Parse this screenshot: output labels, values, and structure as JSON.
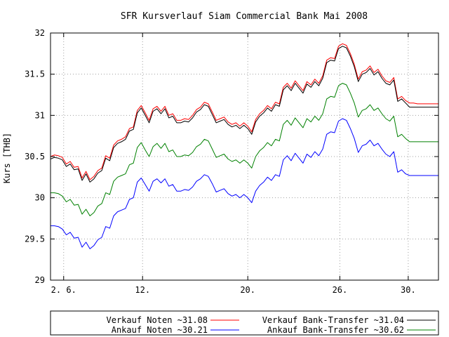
{
  "chart_data": {
    "type": "line",
    "title": "SFR Kursverlauf Siam Commercial Bank Mai 2008",
    "ylabel": "Kurs [THB]",
    "xlabel": "",
    "ylim": [
      29,
      32
    ],
    "xlim": [
      0,
      29.5
    ],
    "grid": true,
    "legend_position": "bottom",
    "yticks": [
      {
        "v": 29,
        "label": "29"
      },
      {
        "v": 29.5,
        "label": "29.5"
      },
      {
        "v": 30,
        "label": "30"
      },
      {
        "v": 30.5,
        "label": "30.5"
      },
      {
        "v": 31,
        "label": "31"
      },
      {
        "v": 31.5,
        "label": "31.5"
      },
      {
        "v": 32,
        "label": "32"
      }
    ],
    "xticks": [
      {
        "v": 1,
        "label": "2. 6."
      },
      {
        "v": 7,
        "label": "12."
      },
      {
        "v": 15,
        "label": "20."
      },
      {
        "v": 22,
        "label": "26."
      },
      {
        "v": 27.2,
        "label": "30."
      }
    ],
    "x": [
      0,
      0.3,
      0.6,
      0.9,
      1.2,
      1.5,
      1.8,
      2.1,
      2.4,
      2.7,
      3.0,
      3.3,
      3.6,
      3.9,
      4.2,
      4.5,
      4.8,
      5.1,
      5.4,
      5.7,
      6.0,
      6.3,
      6.6,
      6.9,
      7.2,
      7.5,
      7.8,
      8.1,
      8.4,
      8.7,
      9.0,
      9.3,
      9.6,
      9.9,
      10.2,
      10.5,
      10.8,
      11.1,
      11.4,
      11.7,
      12.0,
      12.3,
      12.6,
      12.9,
      13.2,
      13.5,
      13.8,
      14.1,
      14.4,
      14.7,
      15.0,
      15.3,
      15.6,
      15.9,
      16.2,
      16.5,
      16.8,
      17.1,
      17.4,
      17.7,
      18.0,
      18.3,
      18.6,
      18.9,
      19.2,
      19.5,
      19.8,
      20.1,
      20.4,
      20.7,
      21.0,
      21.3,
      21.6,
      21.9,
      22.2,
      22.5,
      22.8,
      23.1,
      23.4,
      23.7,
      24.0,
      24.3,
      24.6,
      24.9,
      25.2,
      25.5,
      25.8,
      26.1,
      26.4,
      26.7,
      27.0,
      27.3,
      27.6,
      27.9,
      28.2,
      28.5,
      28.8,
      29.1,
      29.5
    ],
    "series": [
      {
        "name": "Verkauf Noten ~31.08",
        "color": "#ff0000",
        "values": [
          30.5,
          30.52,
          30.51,
          30.49,
          30.41,
          30.44,
          30.37,
          30.38,
          30.24,
          30.32,
          30.22,
          30.26,
          30.33,
          30.36,
          30.51,
          30.48,
          30.64,
          30.69,
          30.71,
          30.74,
          30.84,
          30.86,
          31.06,
          31.12,
          31.03,
          30.94,
          31.08,
          31.11,
          31.05,
          31.11,
          31.0,
          31.02,
          30.94,
          30.94,
          30.96,
          30.95,
          31.0,
          31.07,
          31.1,
          31.16,
          31.14,
          31.04,
          30.94,
          30.96,
          30.98,
          30.92,
          30.89,
          30.91,
          30.87,
          30.91,
          30.87,
          30.8,
          30.95,
          31.02,
          31.06,
          31.12,
          31.08,
          31.16,
          31.14,
          31.34,
          31.39,
          31.33,
          31.42,
          31.36,
          31.3,
          31.41,
          31.37,
          31.44,
          31.39,
          31.48,
          31.67,
          31.7,
          31.69,
          31.84,
          31.87,
          31.85,
          31.75,
          31.62,
          31.44,
          31.53,
          31.55,
          31.6,
          31.52,
          31.56,
          31.48,
          31.42,
          31.4,
          31.46,
          31.2,
          31.23,
          31.18,
          31.15,
          31.15,
          31.14,
          31.14,
          31.14,
          31.14,
          31.14,
          31.14
        ]
      },
      {
        "name": "Verkauf Bank-Transfer ~31.04",
        "color": "#000000",
        "values": [
          30.47,
          30.49,
          30.48,
          30.46,
          30.38,
          30.41,
          30.34,
          30.35,
          30.21,
          30.29,
          30.19,
          30.23,
          30.3,
          30.33,
          30.48,
          30.45,
          30.61,
          30.66,
          30.68,
          30.71,
          30.81,
          30.83,
          31.03,
          31.09,
          31.0,
          30.91,
          31.05,
          31.08,
          31.02,
          31.08,
          30.97,
          30.99,
          30.91,
          30.91,
          30.93,
          30.92,
          30.97,
          31.04,
          31.07,
          31.13,
          31.11,
          31.01,
          30.91,
          30.93,
          30.95,
          30.89,
          30.86,
          30.88,
          30.84,
          30.88,
          30.84,
          30.77,
          30.92,
          30.99,
          31.03,
          31.09,
          31.05,
          31.13,
          31.11,
          31.31,
          31.36,
          31.3,
          31.39,
          31.33,
          31.27,
          31.38,
          31.34,
          31.41,
          31.36,
          31.45,
          31.64,
          31.67,
          31.66,
          31.81,
          31.84,
          31.82,
          31.72,
          31.59,
          31.41,
          31.5,
          31.52,
          31.57,
          31.49,
          31.53,
          31.45,
          31.39,
          31.37,
          31.43,
          31.17,
          31.2,
          31.15,
          31.1,
          31.1,
          31.1,
          31.1,
          31.1,
          31.1,
          31.1,
          31.1
        ]
      },
      {
        "name": "Ankauf Bank-Transfer ~30.62",
        "color": "#008000",
        "values": [
          30.06,
          30.06,
          30.05,
          30.02,
          29.95,
          29.98,
          29.91,
          29.92,
          29.8,
          29.86,
          29.78,
          29.82,
          29.9,
          29.93,
          30.06,
          30.04,
          30.2,
          30.25,
          30.27,
          30.29,
          30.4,
          30.42,
          30.61,
          30.67,
          30.58,
          30.5,
          30.62,
          30.66,
          30.6,
          30.66,
          30.56,
          30.58,
          30.5,
          30.5,
          30.52,
          30.51,
          30.55,
          30.62,
          30.65,
          30.71,
          30.69,
          30.59,
          30.49,
          30.51,
          30.53,
          30.47,
          30.44,
          30.46,
          30.42,
          30.46,
          30.42,
          30.36,
          30.5,
          30.57,
          30.61,
          30.67,
          30.63,
          30.71,
          30.69,
          30.89,
          30.94,
          30.88,
          30.97,
          30.91,
          30.85,
          30.96,
          30.92,
          30.99,
          30.94,
          31.02,
          31.2,
          31.23,
          31.22,
          31.36,
          31.39,
          31.37,
          31.27,
          31.15,
          30.98,
          31.06,
          31.08,
          31.13,
          31.06,
          31.09,
          31.02,
          30.96,
          30.93,
          30.99,
          30.74,
          30.77,
          30.72,
          30.68,
          30.68,
          30.68,
          30.68,
          30.68,
          30.68,
          30.68,
          30.68
        ]
      },
      {
        "name": "Ankauf Noten ~30.21",
        "color": "#0000ff",
        "values": [
          29.66,
          29.66,
          29.65,
          29.62,
          29.55,
          29.58,
          29.51,
          29.52,
          29.4,
          29.46,
          29.38,
          29.42,
          29.49,
          29.52,
          29.65,
          29.63,
          29.78,
          29.83,
          29.85,
          29.87,
          29.98,
          30.0,
          30.19,
          30.24,
          30.16,
          30.08,
          30.2,
          30.23,
          30.18,
          30.23,
          30.14,
          30.16,
          30.08,
          30.08,
          30.1,
          30.09,
          30.13,
          30.2,
          30.23,
          30.28,
          30.26,
          30.17,
          30.07,
          30.09,
          30.11,
          30.05,
          30.02,
          30.04,
          30.0,
          30.04,
          30.0,
          29.94,
          30.08,
          30.15,
          30.19,
          30.25,
          30.21,
          30.28,
          30.26,
          30.46,
          30.51,
          30.45,
          30.54,
          30.48,
          30.42,
          30.53,
          30.49,
          30.56,
          30.51,
          30.59,
          30.77,
          30.8,
          30.79,
          30.93,
          30.96,
          30.94,
          30.84,
          30.72,
          30.55,
          30.63,
          30.65,
          30.7,
          30.63,
          30.66,
          30.59,
          30.53,
          30.5,
          30.56,
          30.31,
          30.34,
          30.29,
          30.27,
          30.27,
          30.27,
          30.27,
          30.27,
          30.27,
          30.27,
          30.27
        ]
      }
    ],
    "legend": [
      {
        "label": "Verkauf Noten ~31.08",
        "color": "#ff0000"
      },
      {
        "label": "Verkauf Bank-Transfer ~31.04",
        "color": "#000000"
      },
      {
        "label": "Ankauf Noten ~30.21",
        "color": "#0000ff"
      },
      {
        "label": "Ankauf Bank-Transfer ~30.62",
        "color": "#008000"
      }
    ]
  }
}
